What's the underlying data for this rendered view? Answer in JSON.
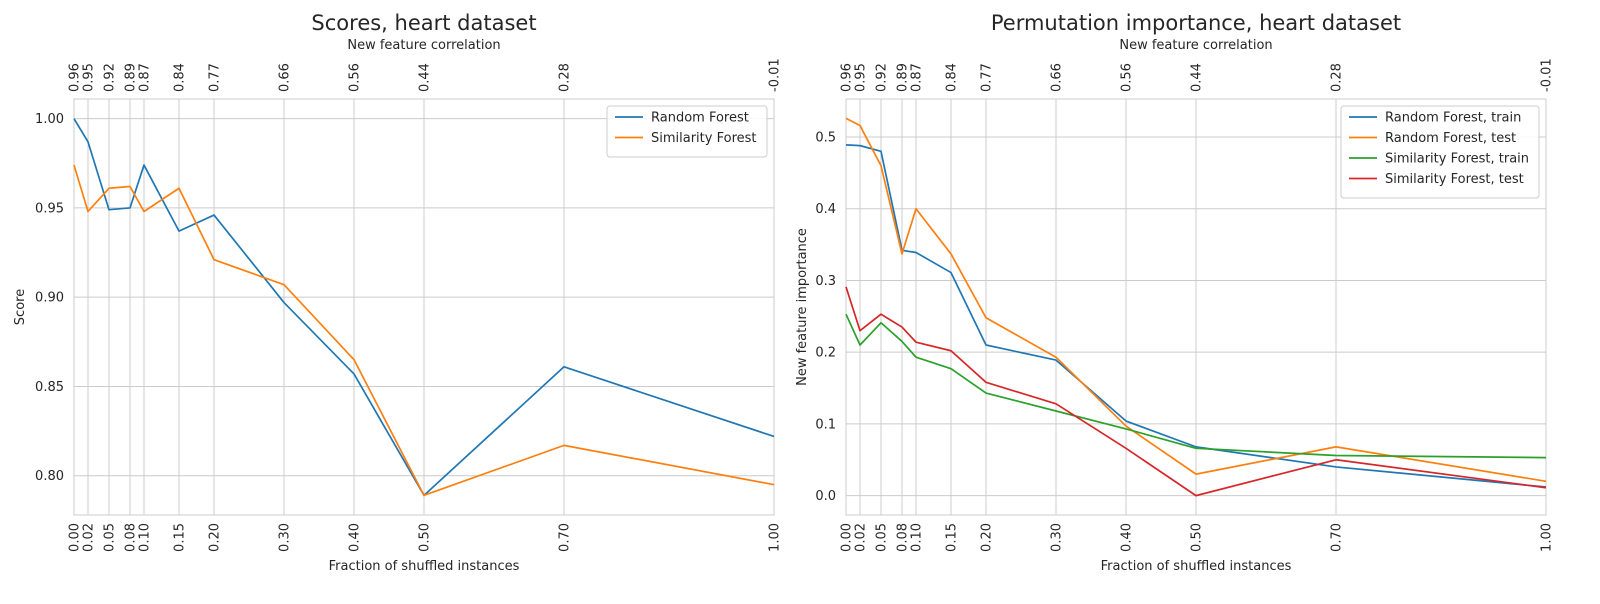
{
  "chart_data": [
    {
      "type": "line",
      "title": "Scores, heart dataset",
      "xlabel": "Fraction of shuffled instances",
      "ylabel": "Score",
      "top_xlabel": "New feature correlation",
      "x": [
        0.0,
        0.02,
        0.05,
        0.08,
        0.1,
        0.15,
        0.2,
        0.3,
        0.4,
        0.5,
        0.7,
        1.0
      ],
      "x_tick_labels": [
        "0.00",
        "0.02",
        "0.05",
        "0.08",
        "0.10",
        "0.15",
        "0.20",
        "0.30",
        "0.40",
        "0.50",
        "0.70",
        "1.00"
      ],
      "top_tick_labels": [
        "0.96",
        "0.95",
        "0.92",
        "0.89",
        "0.87",
        "0.84",
        "0.77",
        "0.66",
        "0.56",
        "0.44",
        "0.28",
        "-0.01"
      ],
      "xlim": [
        0,
        1
      ],
      "ylim": [
        0.778,
        1.011
      ],
      "y_ticks": [
        0.8,
        0.85,
        0.9,
        0.95,
        1.0
      ],
      "y_tick_labels": [
        "0.80",
        "0.85",
        "0.90",
        "0.95",
        "1.00"
      ],
      "grid": true,
      "legend_position": "top-right",
      "series": [
        {
          "name": "Random Forest",
          "color": "#1f77b4",
          "values": [
            1.0,
            0.987,
            0.949,
            0.95,
            0.974,
            0.937,
            0.946,
            0.897,
            0.857,
            0.789,
            0.861,
            0.822
          ]
        },
        {
          "name": "Similarity Forest",
          "color": "#ff7f0e",
          "values": [
            0.974,
            0.948,
            0.961,
            0.962,
            0.948,
            0.961,
            0.921,
            0.907,
            0.865,
            0.789,
            0.817,
            0.795
          ]
        }
      ]
    },
    {
      "type": "line",
      "title": "Permutation importance, heart dataset",
      "xlabel": "Fraction of shuffled instances",
      "ylabel": "New feature importance",
      "top_xlabel": "New feature correlation",
      "x": [
        0.0,
        0.02,
        0.05,
        0.08,
        0.1,
        0.15,
        0.2,
        0.3,
        0.4,
        0.5,
        0.7,
        1.0
      ],
      "x_tick_labels": [
        "0.00",
        "0.02",
        "0.05",
        "0.08",
        "0.10",
        "0.15",
        "0.20",
        "0.30",
        "0.40",
        "0.50",
        "0.70",
        "1.00"
      ],
      "top_tick_labels": [
        "0.96",
        "0.95",
        "0.92",
        "0.89",
        "0.87",
        "0.84",
        "0.77",
        "0.66",
        "0.56",
        "0.44",
        "0.28",
        "-0.01"
      ],
      "xlim": [
        0,
        1
      ],
      "ylim": [
        -0.027,
        0.553
      ],
      "y_ticks": [
        0.0,
        0.1,
        0.2,
        0.3,
        0.4,
        0.5
      ],
      "y_tick_labels": [
        "0.0",
        "0.1",
        "0.2",
        "0.3",
        "0.4",
        "0.5"
      ],
      "grid": true,
      "legend_position": "top-right",
      "series": [
        {
          "name": "Random Forest, train",
          "color": "#1f77b4",
          "values": [
            0.489,
            0.488,
            0.48,
            0.342,
            0.339,
            0.311,
            0.21,
            0.189,
            0.104,
            0.068,
            0.04,
            0.012
          ]
        },
        {
          "name": "Random Forest, test",
          "color": "#ff7f0e",
          "values": [
            0.526,
            0.516,
            0.46,
            0.337,
            0.4,
            0.337,
            0.248,
            0.193,
            0.097,
            0.03,
            0.068,
            0.02
          ]
        },
        {
          "name": "Similarity Forest, train",
          "color": "#2ca02c",
          "values": [
            0.253,
            0.21,
            0.241,
            0.215,
            0.193,
            0.177,
            0.143,
            0.118,
            0.093,
            0.066,
            0.056,
            0.053
          ]
        },
        {
          "name": "Similarity Forest, test",
          "color": "#d62728",
          "values": [
            0.291,
            0.23,
            0.253,
            0.235,
            0.214,
            0.202,
            0.158,
            0.128,
            0.066,
            0.0,
            0.05,
            0.011
          ]
        }
      ]
    }
  ]
}
